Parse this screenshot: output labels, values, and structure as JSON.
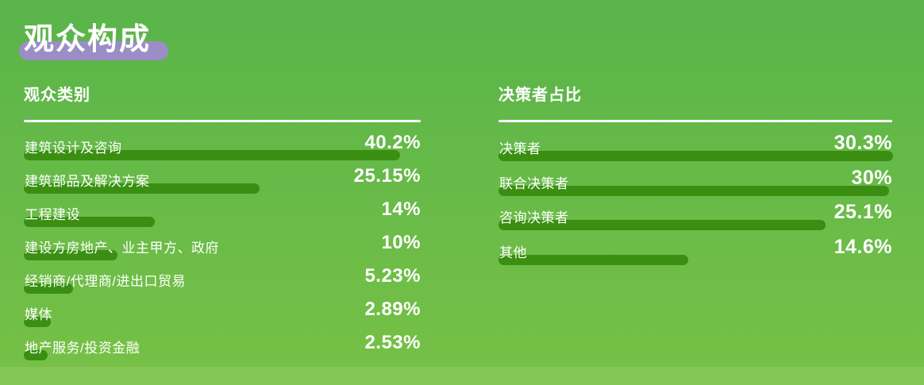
{
  "page": {
    "title": "观众构成"
  },
  "colors": {
    "bg_top": "#59b44a",
    "bg_bottom": "#77c146",
    "bar": "#3a8f12",
    "title_highlight": "#9c8dc6",
    "text": "#ffffff"
  },
  "chart_data": [
    {
      "type": "bar",
      "orientation": "horizontal",
      "title": "观众类别",
      "unit": "%",
      "categories": [
        "建筑设计及咨询",
        "建筑部品及解决方案",
        "工程建设",
        "建设方房地产、业主甲方、政府",
        "经销商/代理商/进出口贸易",
        "媒体",
        "地产服务/投资金融"
      ],
      "values": [
        40.2,
        25.15,
        14,
        10,
        5.23,
        2.89,
        2.53
      ],
      "value_labels": [
        "40.2%",
        "25.15%",
        "14%",
        "10%",
        "5.23%",
        "2.89%",
        "2.53%"
      ],
      "xlim": [
        0,
        40.2
      ],
      "grid": false,
      "legend": "none"
    },
    {
      "type": "bar",
      "orientation": "horizontal",
      "title": "决策者占比",
      "unit": "%",
      "categories": [
        "决策者",
        "联合决策者",
        "咨询决策者",
        "其他"
      ],
      "values": [
        30.3,
        30,
        25.1,
        14.6
      ],
      "value_labels": [
        "30.3%",
        "30%",
        "25.1%",
        "14.6%"
      ],
      "xlim": [
        0,
        30.3
      ],
      "grid": false,
      "legend": "none"
    }
  ]
}
